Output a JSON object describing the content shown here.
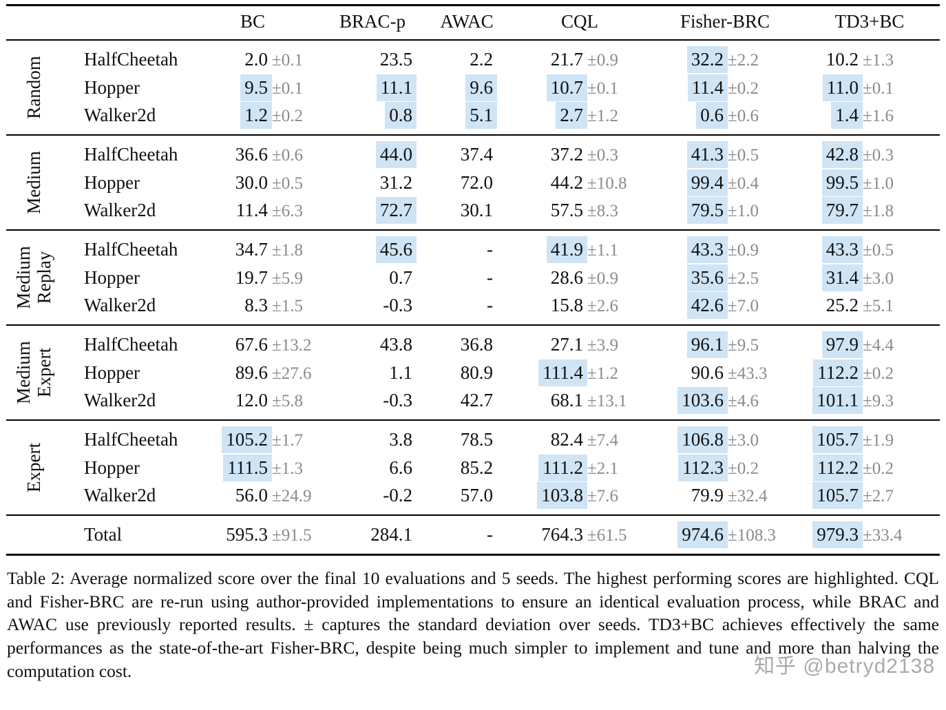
{
  "table": {
    "columns": [
      "BC",
      "BRAC-p",
      "AWAC",
      "CQL",
      "Fisher-BRC",
      "TD3+BC"
    ],
    "groups": [
      {
        "label": [
          "Random"
        ],
        "rows": [
          {
            "env": "HalfCheetah",
            "cells": [
              {
                "v": "2.0",
                "sd": "±0.1",
                "hl": false
              },
              {
                "v": "23.5",
                "sd": "",
                "hl": false
              },
              {
                "v": "2.2",
                "sd": "",
                "hl": false
              },
              {
                "v": "21.7",
                "sd": "±0.9",
                "hl": false
              },
              {
                "v": "32.2",
                "sd": "±2.2",
                "hl": true
              },
              {
                "v": "10.2",
                "sd": "±1.3",
                "hl": false
              }
            ]
          },
          {
            "env": "Hopper",
            "cells": [
              {
                "v": "9.5",
                "sd": "±0.1",
                "hl": true
              },
              {
                "v": "11.1",
                "sd": "",
                "hl": true
              },
              {
                "v": "9.6",
                "sd": "",
                "hl": true
              },
              {
                "v": "10.7",
                "sd": "±0.1",
                "hl": true
              },
              {
                "v": "11.4",
                "sd": "±0.2",
                "hl": true
              },
              {
                "v": "11.0",
                "sd": "±0.1",
                "hl": true
              }
            ]
          },
          {
            "env": "Walker2d",
            "cells": [
              {
                "v": "1.2",
                "sd": "±0.2",
                "hl": true
              },
              {
                "v": "0.8",
                "sd": "",
                "hl": true
              },
              {
                "v": "5.1",
                "sd": "",
                "hl": true
              },
              {
                "v": "2.7",
                "sd": "±1.2",
                "hl": true
              },
              {
                "v": "0.6",
                "sd": "±0.6",
                "hl": true
              },
              {
                "v": "1.4",
                "sd": "±1.6",
                "hl": true
              }
            ]
          }
        ]
      },
      {
        "label": [
          "Medium"
        ],
        "rows": [
          {
            "env": "HalfCheetah",
            "cells": [
              {
                "v": "36.6",
                "sd": "±0.6",
                "hl": false
              },
              {
                "v": "44.0",
                "sd": "",
                "hl": true
              },
              {
                "v": "37.4",
                "sd": "",
                "hl": false
              },
              {
                "v": "37.2",
                "sd": "±0.3",
                "hl": false
              },
              {
                "v": "41.3",
                "sd": "±0.5",
                "hl": true
              },
              {
                "v": "42.8",
                "sd": "±0.3",
                "hl": true
              }
            ]
          },
          {
            "env": "Hopper",
            "cells": [
              {
                "v": "30.0",
                "sd": "±0.5",
                "hl": false
              },
              {
                "v": "31.2",
                "sd": "",
                "hl": false
              },
              {
                "v": "72.0",
                "sd": "",
                "hl": false
              },
              {
                "v": "44.2",
                "sd": "±10.8",
                "hl": false
              },
              {
                "v": "99.4",
                "sd": "±0.4",
                "hl": true
              },
              {
                "v": "99.5",
                "sd": "±1.0",
                "hl": true
              }
            ]
          },
          {
            "env": "Walker2d",
            "cells": [
              {
                "v": "11.4",
                "sd": "±6.3",
                "hl": false
              },
              {
                "v": "72.7",
                "sd": "",
                "hl": true
              },
              {
                "v": "30.1",
                "sd": "",
                "hl": false
              },
              {
                "v": "57.5",
                "sd": "±8.3",
                "hl": false
              },
              {
                "v": "79.5",
                "sd": "±1.0",
                "hl": true
              },
              {
                "v": "79.7",
                "sd": "±1.8",
                "hl": true
              }
            ]
          }
        ]
      },
      {
        "label": [
          "Medium",
          "Replay"
        ],
        "rows": [
          {
            "env": "HalfCheetah",
            "cells": [
              {
                "v": "34.7",
                "sd": "±1.8",
                "hl": false
              },
              {
                "v": "45.6",
                "sd": "",
                "hl": true
              },
              {
                "v": "-",
                "sd": "",
                "hl": false
              },
              {
                "v": "41.9",
                "sd": "±1.1",
                "hl": true
              },
              {
                "v": "43.3",
                "sd": "±0.9",
                "hl": true
              },
              {
                "v": "43.3",
                "sd": "±0.5",
                "hl": true
              }
            ]
          },
          {
            "env": "Hopper",
            "cells": [
              {
                "v": "19.7",
                "sd": "±5.9",
                "hl": false
              },
              {
                "v": "0.7",
                "sd": "",
                "hl": false
              },
              {
                "v": "-",
                "sd": "",
                "hl": false
              },
              {
                "v": "28.6",
                "sd": "±0.9",
                "hl": false
              },
              {
                "v": "35.6",
                "sd": "±2.5",
                "hl": true
              },
              {
                "v": "31.4",
                "sd": "±3.0",
                "hl": true
              }
            ]
          },
          {
            "env": "Walker2d",
            "cells": [
              {
                "v": "8.3",
                "sd": "±1.5",
                "hl": false
              },
              {
                "v": "-0.3",
                "sd": "",
                "hl": false
              },
              {
                "v": "-",
                "sd": "",
                "hl": false
              },
              {
                "v": "15.8",
                "sd": "±2.6",
                "hl": false
              },
              {
                "v": "42.6",
                "sd": "±7.0",
                "hl": true
              },
              {
                "v": "25.2",
                "sd": "±5.1",
                "hl": false
              }
            ]
          }
        ]
      },
      {
        "label": [
          "Medium",
          "Expert"
        ],
        "rows": [
          {
            "env": "HalfCheetah",
            "cells": [
              {
                "v": "67.6",
                "sd": "±13.2",
                "hl": false
              },
              {
                "v": "43.8",
                "sd": "",
                "hl": false
              },
              {
                "v": "36.8",
                "sd": "",
                "hl": false
              },
              {
                "v": "27.1",
                "sd": "±3.9",
                "hl": false
              },
              {
                "v": "96.1",
                "sd": "±9.5",
                "hl": true
              },
              {
                "v": "97.9",
                "sd": "±4.4",
                "hl": true
              }
            ]
          },
          {
            "env": "Hopper",
            "cells": [
              {
                "v": "89.6",
                "sd": "±27.6",
                "hl": false
              },
              {
                "v": "1.1",
                "sd": "",
                "hl": false
              },
              {
                "v": "80.9",
                "sd": "",
                "hl": false
              },
              {
                "v": "111.4",
                "sd": "±1.2",
                "hl": true
              },
              {
                "v": "90.6",
                "sd": "±43.3",
                "hl": false
              },
              {
                "v": "112.2",
                "sd": "±0.2",
                "hl": true
              }
            ]
          },
          {
            "env": "Walker2d",
            "cells": [
              {
                "v": "12.0",
                "sd": "±5.8",
                "hl": false
              },
              {
                "v": "-0.3",
                "sd": "",
                "hl": false
              },
              {
                "v": "42.7",
                "sd": "",
                "hl": false
              },
              {
                "v": "68.1",
                "sd": "±13.1",
                "hl": false
              },
              {
                "v": "103.6",
                "sd": "±4.6",
                "hl": true
              },
              {
                "v": "101.1",
                "sd": "±9.3",
                "hl": true
              }
            ]
          }
        ]
      },
      {
        "label": [
          "Expert"
        ],
        "rows": [
          {
            "env": "HalfCheetah",
            "cells": [
              {
                "v": "105.2",
                "sd": "±1.7",
                "hl": true
              },
              {
                "v": "3.8",
                "sd": "",
                "hl": false
              },
              {
                "v": "78.5",
                "sd": "",
                "hl": false
              },
              {
                "v": "82.4",
                "sd": "±7.4",
                "hl": false
              },
              {
                "v": "106.8",
                "sd": "±3.0",
                "hl": true
              },
              {
                "v": "105.7",
                "sd": "±1.9",
                "hl": true
              }
            ]
          },
          {
            "env": "Hopper",
            "cells": [
              {
                "v": "111.5",
                "sd": "±1.3",
                "hl": true
              },
              {
                "v": "6.6",
                "sd": "",
                "hl": false
              },
              {
                "v": "85.2",
                "sd": "",
                "hl": false
              },
              {
                "v": "111.2",
                "sd": "±2.1",
                "hl": true
              },
              {
                "v": "112.3",
                "sd": "±0.2",
                "hl": true
              },
              {
                "v": "112.2",
                "sd": "±0.2",
                "hl": true
              }
            ]
          },
          {
            "env": "Walker2d",
            "cells": [
              {
                "v": "56.0",
                "sd": "±24.9",
                "hl": false
              },
              {
                "v": "-0.2",
                "sd": "",
                "hl": false
              },
              {
                "v": "57.0",
                "sd": "",
                "hl": false
              },
              {
                "v": "103.8",
                "sd": "±7.6",
                "hl": true
              },
              {
                "v": "79.9",
                "sd": "±32.4",
                "hl": false
              },
              {
                "v": "105.7",
                "sd": "±2.7",
                "hl": true
              }
            ]
          }
        ]
      }
    ],
    "total": {
      "label": "Total",
      "cells": [
        {
          "v": "595.3",
          "sd": "±91.5",
          "hl": false
        },
        {
          "v": "284.1",
          "sd": "",
          "hl": false
        },
        {
          "v": "-",
          "sd": "",
          "hl": false
        },
        {
          "v": "764.3",
          "sd": "±61.5",
          "hl": false
        },
        {
          "v": "974.6",
          "sd": "±108.3",
          "hl": true
        },
        {
          "v": "979.3",
          "sd": "±33.4",
          "hl": true
        }
      ]
    }
  },
  "caption": {
    "text": "Table 2: Average normalized score over the final 10 evaluations and 5 seeds. The highest performing scores are highlighted. CQL and Fisher-BRC are re-run using author-provided implementations to ensure an identical evaluation process, while BRAC and AWAC use previously reported results. ± captures the standard deviation over seeds. TD3+BC achieves effectively the same performances as the state-of-the-art Fisher-BRC, despite being much simpler to implement and tune and more than halving the computation cost."
  },
  "watermark": "知乎 @betryd2138",
  "colors": {
    "highlight": "#cfe4f5",
    "sd_text": "#8a8a8a"
  }
}
